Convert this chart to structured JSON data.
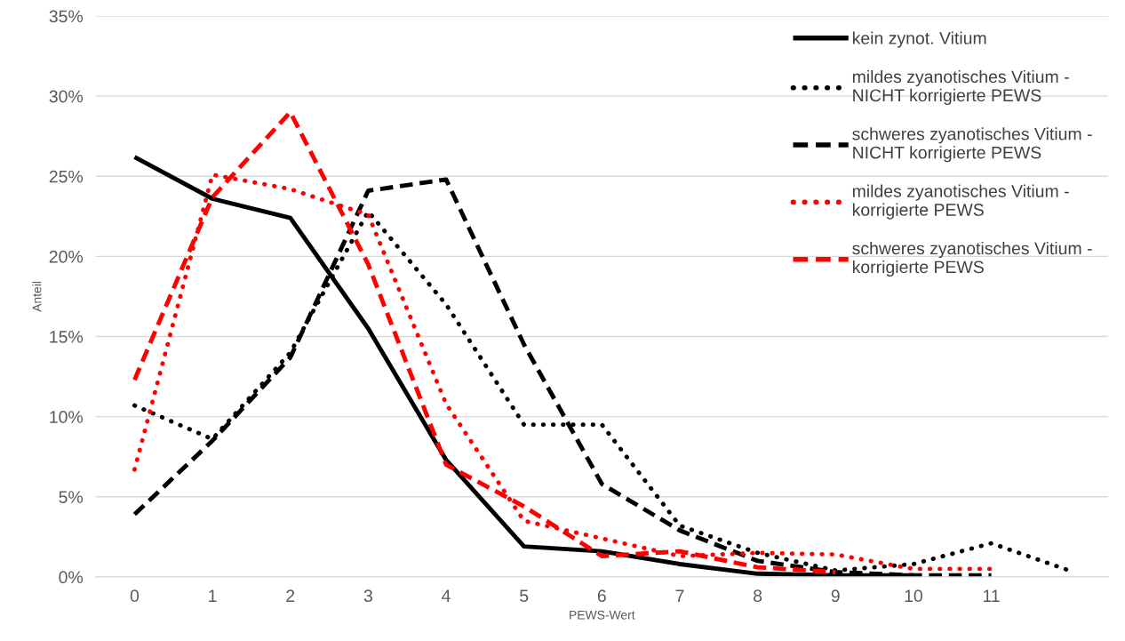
{
  "chart_data": {
    "type": "line",
    "xlabel": "PEWS-Wert",
    "ylabel": "Anteil",
    "categories": [
      "0",
      "1",
      "2",
      "3",
      "4",
      "5",
      "6",
      "7",
      "8",
      "9",
      "10",
      "11",
      null
    ],
    "ylim": [
      0,
      35
    ],
    "yticks": [
      {
        "value": 0,
        "label": "0%"
      },
      {
        "value": 5,
        "label": "5%"
      },
      {
        "value": 10,
        "label": "10%"
      },
      {
        "value": 15,
        "label": "15%"
      },
      {
        "value": 20,
        "label": "20%"
      },
      {
        "value": 25,
        "label": "25%"
      },
      {
        "value": 30,
        "label": "30%"
      },
      {
        "value": 35,
        "label": "35%"
      }
    ],
    "grid": "y",
    "legend": "top right",
    "marker": "none",
    "series": [
      {
        "name": "kein zynot. Vitium",
        "color": "#000000",
        "line_style": "solid",
        "values": [
          26.2,
          23.6,
          22.4,
          15.5,
          7.3,
          1.9,
          1.6,
          0.8,
          0.2,
          0.1,
          0.1,
          null,
          null
        ]
      },
      {
        "name": "mildes zyanotisches Vitium - NICHT korrigierte PEWS",
        "color": "#000000",
        "line_style": "dotted",
        "values": [
          10.7,
          8.6,
          14,
          22.8,
          17,
          9.5,
          9.5,
          3.2,
          1.5,
          0.4,
          0.8,
          2.1,
          0.4
        ]
      },
      {
        "name": "schweres zyanotisches Vitium - NICHT korrigierte PEWS",
        "color": "#000000",
        "line_style": "dashed",
        "values": [
          3.9,
          8.5,
          13.7,
          24.1,
          24.8,
          14.5,
          5.8,
          2.9,
          1.0,
          0.3,
          0.1,
          0.1,
          null
        ]
      },
      {
        "name": "mildes zyanotisches Vitium - korrigierte PEWS",
        "color": "#ff0000",
        "line_style": "dotted",
        "values": [
          6.7,
          25.1,
          24.2,
          22.6,
          10.8,
          3.5,
          2.4,
          1.3,
          1.5,
          1.4,
          0.5,
          0.5,
          null
        ]
      },
      {
        "name": "schweres zyanotisches Vitium - korrigierte PEWS",
        "color": "#ff0000",
        "line_style": "dashed",
        "values": [
          12.3,
          23.7,
          29.0,
          19.5,
          7.0,
          4.4,
          1.3,
          1.6,
          0.6,
          0.3,
          null,
          null,
          null
        ]
      }
    ]
  }
}
